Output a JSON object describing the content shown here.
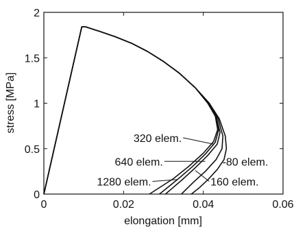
{
  "chart_data": {
    "type": "line",
    "xlabel": "elongation [mm]",
    "ylabel": "stress [MPa]",
    "xlim": [
      0,
      0.06
    ],
    "ylim": [
      0,
      2
    ],
    "xticks": [
      0,
      0.02,
      0.04,
      0.06
    ],
    "xtick_labels": [
      "0",
      "0.02",
      "0.04",
      "0.06"
    ],
    "yticks": [
      0,
      0.5,
      1,
      1.5,
      2
    ],
    "ytick_labels": [
      "0",
      "0.5",
      "1",
      "1.5",
      "2"
    ],
    "grid": false,
    "legend": "none",
    "series": [
      {
        "name": "80 elem.",
        "x": [
          0,
          0.0095,
          0.0105,
          0.014,
          0.018,
          0.022,
          0.026,
          0.03,
          0.034,
          0.038,
          0.0415,
          0.044,
          0.0455,
          0.0458,
          0.0452,
          0.0435,
          0.0412,
          0.039,
          0.037
        ],
        "y": [
          0,
          1.84,
          1.84,
          1.79,
          1.73,
          1.66,
          1.57,
          1.46,
          1.33,
          1.17,
          1.0,
          0.83,
          0.64,
          0.5,
          0.38,
          0.27,
          0.16,
          0.07,
          0
        ]
      },
      {
        "name": "160 elem.",
        "x": [
          0,
          0.0095,
          0.0105,
          0.014,
          0.018,
          0.022,
          0.026,
          0.03,
          0.034,
          0.038,
          0.0415,
          0.0437,
          0.0449,
          0.0447,
          0.0432,
          0.0405,
          0.0375,
          0.0345
        ],
        "y": [
          0,
          1.84,
          1.84,
          1.79,
          1.73,
          1.66,
          1.57,
          1.46,
          1.33,
          1.17,
          1.0,
          0.83,
          0.64,
          0.5,
          0.38,
          0.25,
          0.13,
          0
        ]
      },
      {
        "name": "320 elem.",
        "x": [
          0,
          0.0095,
          0.0105,
          0.014,
          0.018,
          0.022,
          0.026,
          0.03,
          0.034,
          0.038,
          0.0413,
          0.0433,
          0.0442,
          0.0435,
          0.041,
          0.038,
          0.0345,
          0.0305
        ],
        "y": [
          0,
          1.84,
          1.84,
          1.79,
          1.73,
          1.66,
          1.57,
          1.46,
          1.33,
          1.17,
          1.0,
          0.84,
          0.68,
          0.55,
          0.42,
          0.29,
          0.15,
          0
        ]
      },
      {
        "name": "640 elem.",
        "x": [
          0,
          0.0095,
          0.0105,
          0.014,
          0.018,
          0.022,
          0.026,
          0.03,
          0.034,
          0.038,
          0.0412,
          0.0431,
          0.0438,
          0.043,
          0.0405,
          0.0372,
          0.0335,
          0.029
        ],
        "y": [
          0,
          1.84,
          1.84,
          1.79,
          1.73,
          1.66,
          1.57,
          1.46,
          1.33,
          1.17,
          1.0,
          0.85,
          0.7,
          0.57,
          0.44,
          0.3,
          0.16,
          0
        ]
      },
      {
        "name": "1280 elem.",
        "x": [
          0,
          0.0095,
          0.0105,
          0.014,
          0.018,
          0.022,
          0.026,
          0.03,
          0.034,
          0.038,
          0.0411,
          0.043,
          0.0436,
          0.0426,
          0.04,
          0.0365,
          0.0325,
          0.0265
        ],
        "y": [
          0,
          1.84,
          1.84,
          1.79,
          1.73,
          1.66,
          1.57,
          1.46,
          1.33,
          1.17,
          1.0,
          0.86,
          0.71,
          0.58,
          0.45,
          0.31,
          0.17,
          0
        ]
      }
    ],
    "annotations": [
      {
        "text": "320 elem.",
        "x": 0.0225,
        "y": 0.62,
        "target_x": 0.0425,
        "target_y": 0.55
      },
      {
        "text": "640 elem.",
        "x": 0.0178,
        "y": 0.36,
        "target_x": 0.0405,
        "target_y": 0.36
      },
      {
        "text": "1280 elem.",
        "x": 0.0133,
        "y": 0.14,
        "target_x": 0.0335,
        "target_y": 0.16
      },
      {
        "text": "-80 elem.",
        "x": 0.0448,
        "y": 0.36,
        "target_x": 0.0445,
        "target_y": 0.36
      },
      {
        "text": "160 elem.",
        "x": 0.0418,
        "y": 0.14,
        "target_x": 0.038,
        "target_y": 0.26
      }
    ]
  }
}
